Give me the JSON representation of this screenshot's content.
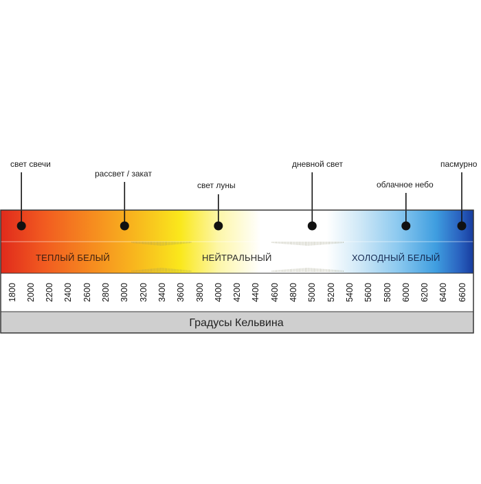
{
  "sources": [
    {
      "id": "candle",
      "label": "свет свечи",
      "kelvin": 1900
    },
    {
      "id": "sunrise",
      "label": "рассвет / закат",
      "kelvin": 3000
    },
    {
      "id": "moon",
      "label": "свет луны",
      "kelvin": 4000
    },
    {
      "id": "daylight",
      "label": "дневной свет",
      "kelvin": 5000
    },
    {
      "id": "cloudy",
      "label": "облачное небо",
      "kelvin": 6000
    },
    {
      "id": "overcast",
      "label": "пасмурно",
      "kelvin": 6600
    }
  ],
  "zones": {
    "warm": "ТЕПЛЫЙ БЕЛЫЙ",
    "neutral": "НЕЙТРАЛЬНЫЙ",
    "cold": "ХОЛОДНЫЙ БЕЛЫЙ"
  },
  "scale": {
    "unit_label": "Градусы Кельвина",
    "ticks": [
      "1800",
      "2000",
      "2200",
      "2400",
      "2600",
      "2800",
      "3000",
      "3200",
      "3400",
      "3600",
      "3800",
      "4000",
      "4200",
      "4400",
      "4600",
      "4800",
      "5000",
      "5200",
      "5400",
      "5600",
      "5800",
      "6000",
      "6200",
      "6400",
      "6600"
    ]
  },
  "colors": {
    "warm_red": "#e8321e",
    "orange": "#f6901e",
    "yellow": "#f8e61a",
    "neutral_white": "#ffffff",
    "sky_blue": "#49a8e6",
    "deep_blue": "#173c9e",
    "footer_gray": "#cfcfcf",
    "frame": "#333333"
  }
}
